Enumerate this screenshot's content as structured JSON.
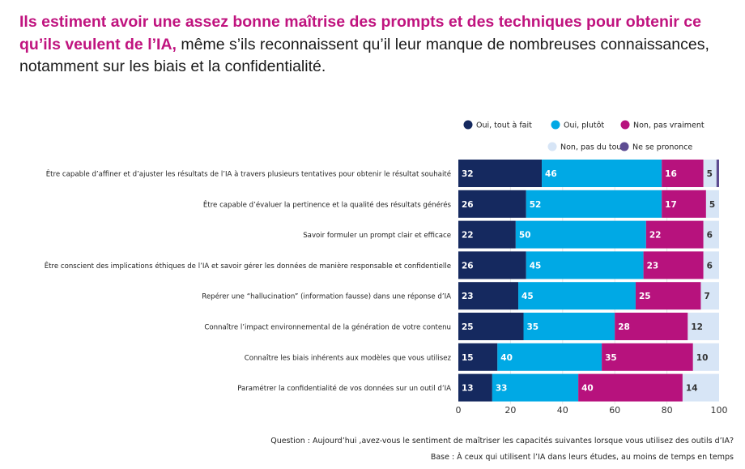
{
  "title": {
    "highlight": "Ils estiment avoir une assez bonne maîtrise des prompts et des techniques pour obtenir ce qu’ils veulent de l’IA,",
    "rest": " même s’ils reconnaissent qu’il leur manque de nombreuses connaissances, notamment sur les biais et la confidentialité."
  },
  "footer": {
    "question": "Question : Aujourd’hui ,avez-vous le sentiment de maîtriser les capacités suivantes lorsque vous utilisez des outils d’IA?",
    "base": "Base : À ceux qui utilisent l’IA dans leurs études, au moins de temps en temps"
  },
  "chart_data": {
    "type": "bar",
    "orientation": "horizontal",
    "stacked": true,
    "xlim": [
      0,
      100
    ],
    "xticks": [
      0,
      20,
      40,
      60,
      80,
      100
    ],
    "grid": true,
    "legend_position": "top-right",
    "categories": [
      "Être capable d’affiner et d’ajuster les résultats de l’IA à travers plusieurs tentatives pour obtenir le résultat souhaité",
      "Être capable d’évaluer la pertinence et la qualité des résultats générés",
      "Savoir formuler un prompt clair et efficace",
      "Être conscient des implications éthiques de l’IA et savoir gérer les données de manière responsable et confidentielle",
      "Repérer une “hallucination” (information fausse) dans une réponse d’IA",
      "Connaître l’impact environnemental de la génération de votre contenu",
      "Connaître les biais inhérents aux modèles que vous utilisez",
      "Paramétrer la confidentialité de vos données sur un outil d’IA"
    ],
    "series": [
      {
        "name": "Oui, tout à fait",
        "color": "#15295f",
        "label_color": "#ffffff",
        "values": [
          32,
          26,
          22,
          26,
          23,
          25,
          15,
          13
        ]
      },
      {
        "name": "Oui, plutôt",
        "color": "#00a9e5",
        "label_color": "#ffffff",
        "values": [
          46,
          52,
          50,
          45,
          45,
          35,
          40,
          33
        ]
      },
      {
        "name": "Non, pas vraiment",
        "color": "#b7127d",
        "label_color": "#ffffff",
        "values": [
          16,
          17,
          22,
          23,
          25,
          28,
          35,
          40
        ]
      },
      {
        "name": "Non, pas du tout",
        "color": "#d7e5f6",
        "label_color": "#333333",
        "values": [
          5,
          5,
          6,
          6,
          7,
          12,
          10,
          14
        ]
      },
      {
        "name": "Ne se prononce",
        "color": "#5d4c92",
        "label_color": "#ffffff",
        "values": [
          1,
          0,
          0,
          0,
          0,
          0,
          0,
          0
        ],
        "labeled": false
      }
    ]
  }
}
